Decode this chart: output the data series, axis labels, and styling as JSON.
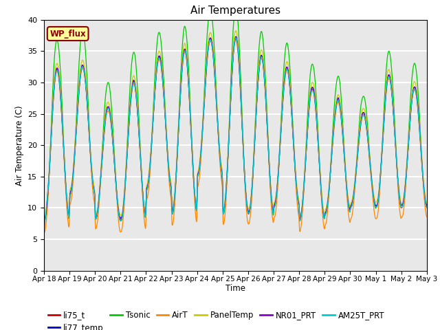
{
  "title": "Air Temperatures",
  "xlabel": "Time",
  "ylabel": "Air Temperature (C)",
  "ylim": [
    0,
    40
  ],
  "yticks": [
    0,
    5,
    10,
    15,
    20,
    25,
    30,
    35,
    40
  ],
  "date_labels": [
    "Apr 18",
    "Apr 19",
    "Apr 20",
    "Apr 21",
    "Apr 22",
    "Apr 23",
    "Apr 24",
    "Apr 25",
    "Apr 26",
    "Apr 27",
    "Apr 28",
    "Apr 29",
    "Apr 30",
    "May 1",
    "May 2",
    "May 3"
  ],
  "legend_entries": [
    "li75_t",
    "li77_temp",
    "Tsonic",
    "AirT",
    "PanelTemp",
    "NR01_PRT",
    "AM25T_PRT"
  ],
  "line_colors": [
    "#cc0000",
    "#0000cc",
    "#00cc00",
    "#ff8800",
    "#cccc00",
    "#8800cc",
    "#00cccc"
  ],
  "annotation_text": "WP_flux",
  "annotation_color": "#8b0000",
  "annotation_bg": "#ffff99",
  "background_color": "#e8e8e8",
  "grid_color": "#ffffff",
  "n_days": 15,
  "points_per_day": 144,
  "title_fontsize": 11,
  "day_max": [
    32,
    32.5,
    26,
    30,
    34,
    35,
    37,
    37,
    34,
    32,
    29,
    27,
    25,
    31,
    29
  ],
  "day_min": [
    8,
    12,
    8,
    8,
    13,
    9,
    15,
    9,
    9,
    10,
    8,
    9,
    10,
    10,
    10
  ],
  "tsonic_extra_day": [
    5,
    6,
    4,
    5,
    4,
    4,
    5,
    5,
    4,
    4,
    4,
    4,
    3,
    4,
    4
  ],
  "airt_low_offset": [
    -1.5,
    -1.5,
    -1.5,
    -1.5,
    -1.5,
    -1.5,
    -1.5,
    -1.5,
    -1.5,
    -1.5,
    -1.5,
    -1.5,
    -1.5,
    -1.5,
    -1.5
  ],
  "legend_ncol": 6,
  "legend_fontsize": 8.5,
  "tick_fontsize": 7.5
}
